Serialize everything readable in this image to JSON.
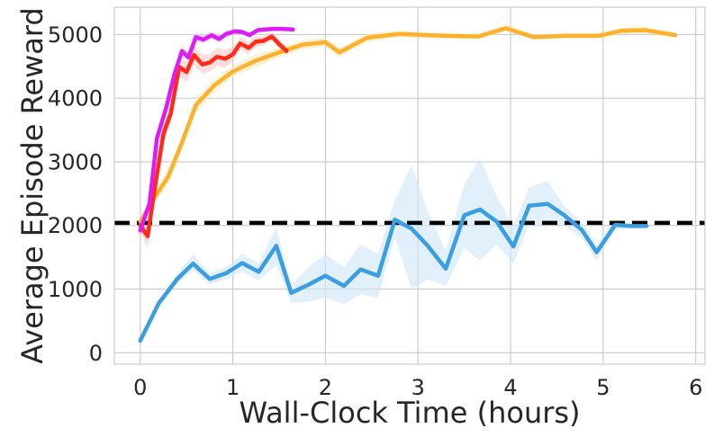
{
  "chart_data": {
    "type": "line",
    "title": "",
    "xlabel": "Wall-Clock Time (hours)",
    "ylabel": "Average Episode Reward",
    "xlim": [
      -0.28,
      6.1
    ],
    "ylim": [
      -180,
      5430
    ],
    "xticks": [
      0,
      1,
      2,
      3,
      4,
      5,
      6
    ],
    "yticks": [
      0,
      1000,
      2000,
      3000,
      4000,
      5000
    ],
    "grid": true,
    "legend": "none",
    "reference_line": {
      "y": 2040,
      "style": "dashed",
      "color": "#000000"
    },
    "series": [
      {
        "color": "#3a9ee0",
        "band_color": "#cfe6f8",
        "x": [
          0,
          0.2,
          0.4,
          0.57,
          0.75,
          0.93,
          1.1,
          1.28,
          1.47,
          1.63,
          1.82,
          2.0,
          2.2,
          2.38,
          2.57,
          2.75,
          2.93,
          3.1,
          3.3,
          3.5,
          3.67,
          3.85,
          4.03,
          4.2,
          4.4,
          4.58,
          4.77,
          4.93,
          5.13,
          5.3,
          5.47
        ],
        "y": [
          190,
          780,
          1160,
          1400,
          1160,
          1250,
          1410,
          1270,
          1680,
          940,
          1070,
          1210,
          1050,
          1310,
          1210,
          2090,
          1950,
          1690,
          1320,
          2160,
          2250,
          2060,
          1670,
          2310,
          2340,
          2160,
          1930,
          1580,
          2010,
          1990,
          1990
        ],
        "lower": [
          190,
          740,
          1080,
          1300,
          1070,
          1150,
          1280,
          1130,
          1380,
          780,
          800,
          870,
          760,
          920,
          860,
          1820,
          1000,
          1150,
          1050,
          1650,
          1450,
          1700,
          1400,
          2000,
          2000,
          2000,
          1800,
          1450,
          1930,
          1960,
          1970
        ],
        "upper": [
          200,
          820,
          1250,
          1550,
          1250,
          1350,
          1550,
          1410,
          1980,
          1050,
          1350,
          1550,
          1340,
          1700,
          1560,
          2400,
          2950,
          2250,
          1600,
          2650,
          3050,
          2450,
          2000,
          2600,
          2700,
          2300,
          2050,
          1700,
          2100,
          2020,
          2010
        ]
      },
      {
        "color": "#fbb12e",
        "band_color": "#fde8b8",
        "x": [
          0,
          0.15,
          0.3,
          0.45,
          0.6,
          0.8,
          1.0,
          1.25,
          1.5,
          1.75,
          2.0,
          2.15,
          2.45,
          2.8,
          3.1,
          3.3,
          3.65,
          3.95,
          4.25,
          4.6,
          4.95,
          5.2,
          5.45,
          5.78
        ],
        "y": [
          2060,
          2430,
          2760,
          3300,
          3890,
          4200,
          4420,
          4590,
          4720,
          4840,
          4880,
          4720,
          4950,
          5010,
          4990,
          4980,
          4970,
          5100,
          4960,
          4980,
          4980,
          5060,
          5070,
          4990
        ],
        "lower": [
          2040,
          2350,
          2650,
          3200,
          3780,
          4100,
          4330,
          4490,
          4640,
          4770,
          4810,
          4650,
          4890,
          4960,
          4940,
          4940,
          4930,
          5050,
          4920,
          4940,
          4940,
          5010,
          5020,
          4950
        ],
        "upper": [
          2080,
          2520,
          2870,
          3400,
          4000,
          4300,
          4510,
          4690,
          4800,
          4910,
          4950,
          4790,
          5010,
          5060,
          5040,
          5020,
          5010,
          5150,
          5000,
          5020,
          5020,
          5110,
          5120,
          5030
        ]
      },
      {
        "color": "#ff2a1a",
        "band_color": "#fbc9c9",
        "x": [
          0,
          0.08,
          0.15,
          0.25,
          0.33,
          0.42,
          0.5,
          0.58,
          0.67,
          0.75,
          0.83,
          0.92,
          1.0,
          1.08,
          1.17,
          1.25,
          1.33,
          1.42,
          1.5,
          1.58
        ],
        "y": [
          2000,
          1830,
          2520,
          3440,
          3760,
          4490,
          4410,
          4680,
          4530,
          4560,
          4650,
          4620,
          4690,
          4860,
          4790,
          4890,
          4900,
          4970,
          4850,
          4740
        ],
        "lower": [
          1900,
          1650,
          2400,
          3300,
          3600,
          4350,
          4250,
          4520,
          4380,
          4420,
          4500,
          4480,
          4580,
          4760,
          4690,
          4800,
          4830,
          4910,
          4780,
          4680
        ],
        "upper": [
          2100,
          2000,
          2640,
          3580,
          3900,
          4620,
          4570,
          4840,
          4680,
          4700,
          4800,
          4760,
          4800,
          4960,
          4890,
          4980,
          4970,
          5030,
          4920,
          4800
        ]
      },
      {
        "color": "#dd1cf5",
        "band_color": "#f5c6fb",
        "x": [
          0,
          0.1,
          0.18,
          0.28,
          0.37,
          0.45,
          0.52,
          0.6,
          0.68,
          0.77,
          0.85,
          0.93,
          1.02,
          1.1,
          1.18,
          1.27,
          1.35,
          1.43,
          1.52,
          1.65
        ],
        "y": [
          1920,
          2350,
          3370,
          3850,
          4380,
          4740,
          4640,
          4960,
          4920,
          4990,
          4930,
          5010,
          5050,
          5040,
          4990,
          5070,
          5080,
          5090,
          5090,
          5080
        ],
        "lower": [
          1880,
          2280,
          3280,
          3760,
          4290,
          4660,
          4570,
          4890,
          4860,
          4930,
          4870,
          4960,
          5000,
          5000,
          4950,
          5030,
          5050,
          5060,
          5060,
          5060
        ],
        "upper": [
          1960,
          2420,
          3460,
          3940,
          4470,
          4820,
          4710,
          5030,
          4980,
          5050,
          4990,
          5060,
          5100,
          5080,
          5030,
          5110,
          5110,
          5120,
          5120,
          5100
        ]
      }
    ]
  }
}
